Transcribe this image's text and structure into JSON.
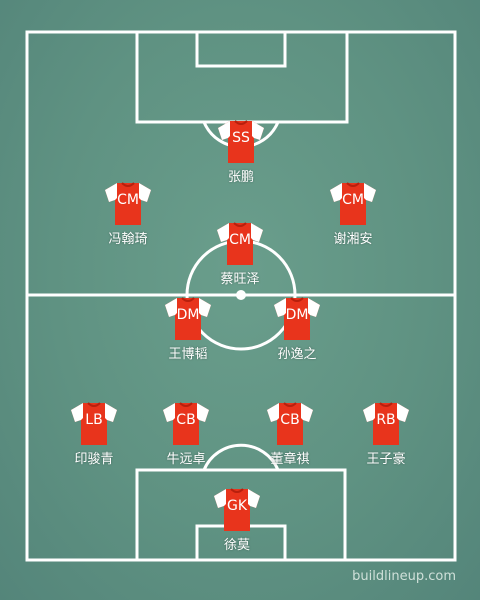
{
  "colors": {
    "pitch": "#5f9282",
    "lines": "#ffffff",
    "shirt_body": "#e8341c",
    "shirt_sleeve": "#ffffff"
  },
  "players": [
    {
      "position": "SS",
      "name": "张鹏"
    },
    {
      "position": "CM",
      "name": "冯翰琦"
    },
    {
      "position": "CM",
      "name": "谢湘安"
    },
    {
      "position": "CM",
      "name": "蔡旺泽"
    },
    {
      "position": "DM",
      "name": "王博韬"
    },
    {
      "position": "DM",
      "name": "孙逸之"
    },
    {
      "position": "LB",
      "name": "印骏青"
    },
    {
      "position": "CB",
      "name": "牛远卓"
    },
    {
      "position": "CB",
      "name": "董章祺"
    },
    {
      "position": "RB",
      "name": "王子豪"
    },
    {
      "position": "GK",
      "name": "徐莫"
    }
  ],
  "watermark": "buildlineup.com"
}
